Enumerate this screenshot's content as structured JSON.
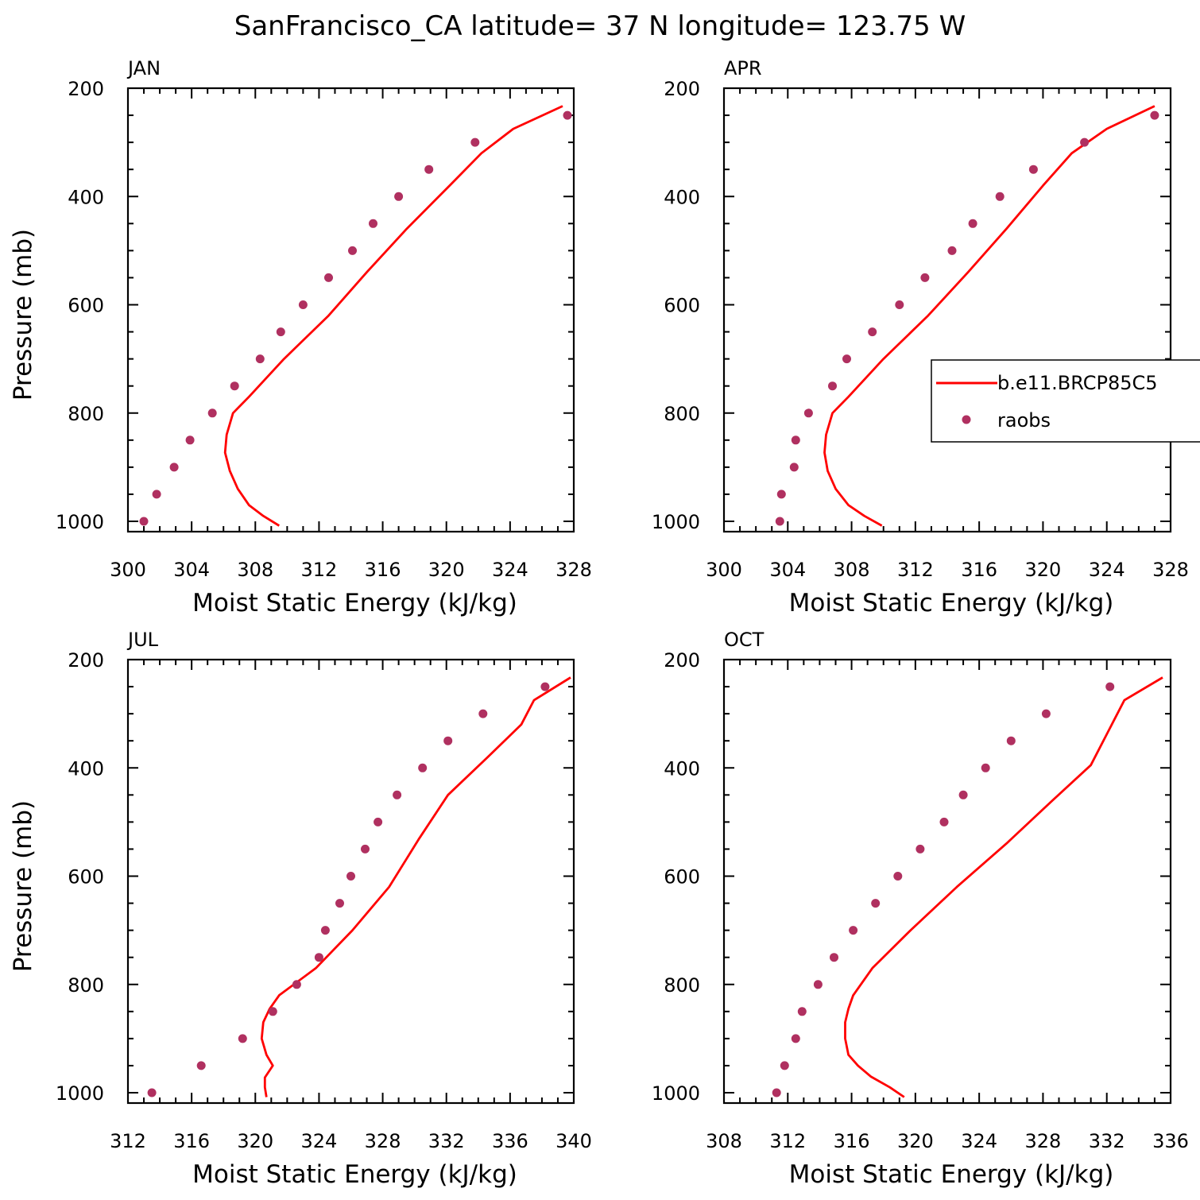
{
  "figure": {
    "title": "SanFrancisco_CA  latitude= 37 N longitude= 123.75 W"
  },
  "legend": {
    "model_label": "b.e11.BRCP85C5",
    "obs_label": "raobs",
    "colors": {
      "model": "#ff0000",
      "obs": "#b03060"
    }
  },
  "chart_data": [
    {
      "type": "line",
      "panel": "JAN",
      "xlabel": "Moist Static Energy (kJ/kg)",
      "ylabel": "Pressure (mb)",
      "xlim": [
        300,
        328
      ],
      "ylim": [
        1000,
        200
      ],
      "xticks": [
        "300",
        "304",
        "308",
        "312",
        "316",
        "320",
        "324",
        "328"
      ],
      "yticks": [
        "200",
        "400",
        "600",
        "800",
        "1000"
      ],
      "series": [
        {
          "name": "b.e11.BRCP85C5",
          "style": "line",
          "x": [
            309.5,
            308.5,
            307.6,
            306.9,
            306.4,
            306.1,
            306.2,
            306.6,
            307.6,
            309.8,
            312.6,
            315.0,
            317.5,
            320.2,
            322.2,
            324.2,
            327.3
          ],
          "y": [
            1008,
            990,
            970,
            940,
            907,
            873,
            840,
            800,
            770,
            700,
            620,
            540,
            460,
            380,
            320,
            275,
            233
          ]
        },
        {
          "name": "raobs",
          "style": "points",
          "x": [
            301.0,
            301.8,
            302.9,
            303.9,
            305.3,
            306.7,
            308.3,
            309.6,
            311.0,
            312.6,
            314.1,
            315.4,
            317.0,
            318.9,
            321.8,
            327.6
          ],
          "y": [
            1000,
            950,
            900,
            850,
            800,
            750,
            700,
            650,
            600,
            550,
            500,
            450,
            400,
            350,
            300,
            250
          ]
        }
      ]
    },
    {
      "type": "line",
      "panel": "APR",
      "xlabel": "Moist Static Energy (kJ/kg)",
      "ylabel": "",
      "xlim": [
        300,
        328
      ],
      "ylim": [
        1000,
        200
      ],
      "xticks": [
        "300",
        "304",
        "308",
        "312",
        "316",
        "320",
        "324",
        "328"
      ],
      "yticks": [
        "200",
        "400",
        "600",
        "800",
        "1000"
      ],
      "show_legend": true,
      "series": [
        {
          "name": "b.e11.BRCP85C5",
          "style": "line",
          "x": [
            309.9,
            308.8,
            307.8,
            307.0,
            306.5,
            306.3,
            306.4,
            306.8,
            307.8,
            310.0,
            312.8,
            315.3,
            317.7,
            320.0,
            321.8,
            324.0,
            327.0
          ],
          "y": [
            1008,
            990,
            970,
            940,
            907,
            873,
            840,
            800,
            770,
            700,
            620,
            540,
            460,
            380,
            320,
            275,
            233
          ]
        },
        {
          "name": "raobs",
          "style": "points",
          "x": [
            303.5,
            303.6,
            304.4,
            304.5,
            305.3,
            306.8,
            307.7,
            309.3,
            311.0,
            312.6,
            314.3,
            315.6,
            317.3,
            319.4,
            322.6,
            327.0
          ],
          "y": [
            1000,
            950,
            900,
            850,
            800,
            750,
            700,
            650,
            600,
            550,
            500,
            450,
            400,
            350,
            300,
            250
          ]
        }
      ]
    },
    {
      "type": "line",
      "panel": "JUL",
      "xlabel": "Moist Static Energy (kJ/kg)",
      "ylabel": "Pressure (mb)",
      "xlim": [
        312,
        340
      ],
      "ylim": [
        1000,
        200
      ],
      "xticks": [
        "312",
        "316",
        "320",
        "324",
        "328",
        "332",
        "336",
        "340"
      ],
      "yticks": [
        "200",
        "400",
        "600",
        "800",
        "1000"
      ],
      "series": [
        {
          "name": "b.e11.BRCP85C5",
          "style": "line",
          "x": [
            320.7,
            320.6,
            320.6,
            321.1,
            320.7,
            320.4,
            320.5,
            320.9,
            321.5,
            323.8,
            326.1,
            328.4,
            330.3,
            332.1,
            334.6,
            336.7,
            337.5,
            339.8
          ],
          "y": [
            1008,
            990,
            972,
            950,
            930,
            900,
            870,
            845,
            820,
            770,
            700,
            620,
            530,
            450,
            380,
            320,
            275,
            233
          ]
        },
        {
          "name": "raobs",
          "style": "points",
          "x": [
            313.5,
            316.6,
            319.2,
            321.1,
            322.6,
            324.0,
            324.4,
            325.3,
            326.0,
            326.9,
            327.7,
            328.9,
            330.5,
            332.1,
            334.3,
            338.2
          ],
          "y": [
            1000,
            950,
            900,
            850,
            800,
            750,
            700,
            650,
            600,
            550,
            500,
            450,
            400,
            350,
            300,
            250
          ]
        }
      ]
    },
    {
      "type": "line",
      "panel": "OCT",
      "xlabel": "Moist Static Energy (kJ/kg)",
      "ylabel": "",
      "xlim": [
        308,
        336
      ],
      "ylim": [
        1000,
        200
      ],
      "xticks": [
        "308",
        "312",
        "316",
        "320",
        "324",
        "328",
        "332",
        "336"
      ],
      "yticks": [
        "200",
        "400",
        "600",
        "800",
        "1000"
      ],
      "series": [
        {
          "name": "b.e11.BRCP85C5",
          "style": "line",
          "x": [
            319.3,
            318.4,
            317.2,
            316.4,
            315.8,
            315.6,
            315.6,
            315.8,
            316.1,
            317.3,
            319.7,
            322.6,
            325.7,
            328.6,
            331.0,
            333.1,
            335.5
          ],
          "y": [
            1008,
            990,
            970,
            950,
            930,
            900,
            870,
            845,
            820,
            770,
            700,
            620,
            540,
            460,
            395,
            275,
            233
          ]
        },
        {
          "name": "raobs",
          "style": "points",
          "x": [
            311.3,
            311.8,
            312.5,
            312.9,
            313.9,
            314.9,
            316.1,
            317.5,
            318.9,
            320.3,
            321.8,
            323.0,
            324.4,
            326.0,
            328.2,
            332.2
          ],
          "y": [
            1000,
            950,
            900,
            850,
            800,
            750,
            700,
            650,
            600,
            550,
            500,
            450,
            400,
            350,
            300,
            250
          ]
        }
      ]
    }
  ]
}
